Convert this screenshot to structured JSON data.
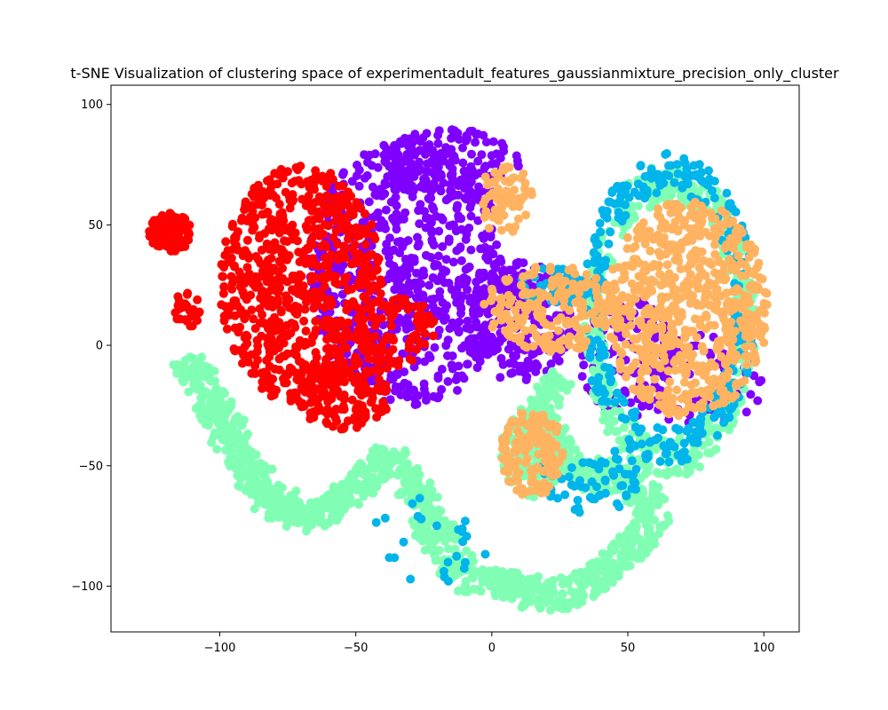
{
  "chart_data": {
    "type": "scatter",
    "title": "t-SNE Visualization of clustering space of experimentadult_features_gaussianmixture_precision_only_cluster",
    "xlabel": "",
    "ylabel": "",
    "xlim": [
      -140,
      113
    ],
    "ylim": [
      -119,
      108
    ],
    "grid": false,
    "legend": "none",
    "x_ticks": [
      -100,
      -50,
      0,
      50,
      100
    ],
    "y_ticks": [
      -100,
      -50,
      0,
      50,
      100
    ],
    "x_tick_labels": [
      "−100",
      "−50",
      "0",
      "50",
      "100"
    ],
    "y_tick_labels": [
      "−100",
      "−50",
      "0",
      "50",
      "100"
    ],
    "marker_size": 6,
    "clusters": [
      {
        "color": "#8000ff",
        "regions": [
          {
            "shape": "ellipse",
            "cx": -30,
            "cy": 30,
            "rx": 38,
            "ry": 55,
            "n": 700
          },
          {
            "shape": "ellipse",
            "cx": -15,
            "cy": 75,
            "rx": 25,
            "ry": 15,
            "n": 160
          },
          {
            "shape": "ellipse",
            "cx": 10,
            "cy": 10,
            "rx": 20,
            "ry": 25,
            "n": 200
          },
          {
            "shape": "ellipse",
            "cx": 50,
            "cy": -5,
            "rx": 18,
            "ry": 25,
            "n": 110
          },
          {
            "shape": "ellipse",
            "cx": 75,
            "cy": -15,
            "rx": 25,
            "ry": 20,
            "n": 70
          }
        ]
      },
      {
        "color": "#ff0000",
        "regions": [
          {
            "shape": "ellipse",
            "cx": -70,
            "cy": 25,
            "rx": 30,
            "ry": 50,
            "n": 750
          },
          {
            "shape": "ellipse",
            "cx": -55,
            "cy": -20,
            "rx": 18,
            "ry": 15,
            "n": 160
          },
          {
            "shape": "ellipse",
            "cx": -118,
            "cy": 47,
            "rx": 8,
            "ry": 8,
            "n": 110
          },
          {
            "shape": "ellipse",
            "cx": -112,
            "cy": 15,
            "rx": 5,
            "ry": 8,
            "n": 25
          },
          {
            "shape": "ellipse",
            "cx": -35,
            "cy": 5,
            "rx": 15,
            "ry": 15,
            "n": 90
          }
        ]
      },
      {
        "color": "#80ffb4",
        "regions": [
          {
            "shape": "path",
            "points": [
              [
                -113,
                -6
              ],
              [
                -100,
                -30
              ],
              [
                -90,
                -50
              ],
              [
                -80,
                -65
              ],
              [
                -65,
                -72
              ],
              [
                -50,
                -60
              ],
              [
                -38,
                -45
              ],
              [
                -30,
                -55
              ],
              [
                -25,
                -65
              ],
              [
                -20,
                -80
              ],
              [
                -10,
                -95
              ],
              [
                5,
                -100
              ],
              [
                20,
                -105
              ],
              [
                35,
                -100
              ],
              [
                45,
                -90
              ],
              [
                55,
                -80
              ],
              [
                60,
                -70
              ],
              [
                55,
                -60
              ],
              [
                40,
                -55
              ],
              [
                25,
                -45
              ],
              [
                15,
                -30
              ],
              [
                25,
                -15
              ]
            ],
            "width": 6,
            "n": 1300
          },
          {
            "shape": "ring",
            "cx": 65,
            "cy": 10,
            "rx": 32,
            "ry": 65,
            "n": 450
          },
          {
            "shape": "ellipse",
            "cx": 15,
            "cy": -45,
            "rx": 12,
            "ry": 18,
            "n": 160
          }
        ]
      },
      {
        "color": "#00b5eb",
        "regions": [
          {
            "shape": "ring",
            "cx": 65,
            "cy": 15,
            "rx": 32,
            "ry": 65,
            "n": 300
          },
          {
            "shape": "ellipse",
            "cx": 35,
            "cy": -55,
            "rx": 20,
            "ry": 15,
            "n": 60
          },
          {
            "shape": "ellipse",
            "cx": 25,
            "cy": 25,
            "rx": 15,
            "ry": 8,
            "n": 60
          },
          {
            "shape": "ellipse",
            "cx": -20,
            "cy": -80,
            "rx": 25,
            "ry": 20,
            "n": 25
          }
        ]
      },
      {
        "color": "#ffb360",
        "regions": [
          {
            "shape": "ellipse",
            "cx": 72,
            "cy": 15,
            "rx": 30,
            "ry": 45,
            "n": 650
          },
          {
            "shape": "ellipse",
            "cx": 22,
            "cy": 15,
            "rx": 25,
            "ry": 18,
            "n": 200
          },
          {
            "shape": "ellipse",
            "cx": 15,
            "cy": -45,
            "rx": 12,
            "ry": 18,
            "n": 140
          },
          {
            "shape": "ellipse",
            "cx": 5,
            "cy": 60,
            "rx": 10,
            "ry": 15,
            "n": 70
          }
        ]
      }
    ]
  }
}
